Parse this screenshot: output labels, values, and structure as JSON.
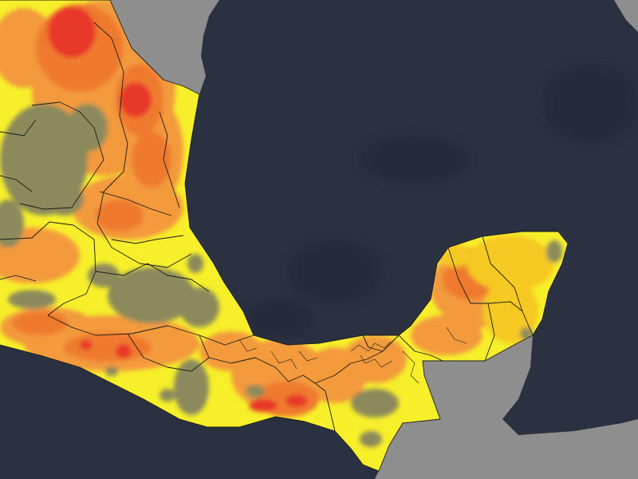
{
  "map": {
    "colors": {
      "ocean": "#2c3142",
      "ocean_dark": "#272b3a",
      "land_gray": "#8e8e8e",
      "land_gray_dark": "#6f7072",
      "class_none": "#8c8a5c",
      "class_low": "#f6ef2a",
      "class_moderate": "#f5c823",
      "class_high": "#f39a3c",
      "class_very_high": "#ef7a2d",
      "class_extreme": "#e8392a",
      "boundary": "#1a1a1a"
    },
    "layers": {
      "basemap": "satellite-imagery",
      "overlay": "categorical-raster",
      "boundaries": "state-and-municipal"
    }
  }
}
